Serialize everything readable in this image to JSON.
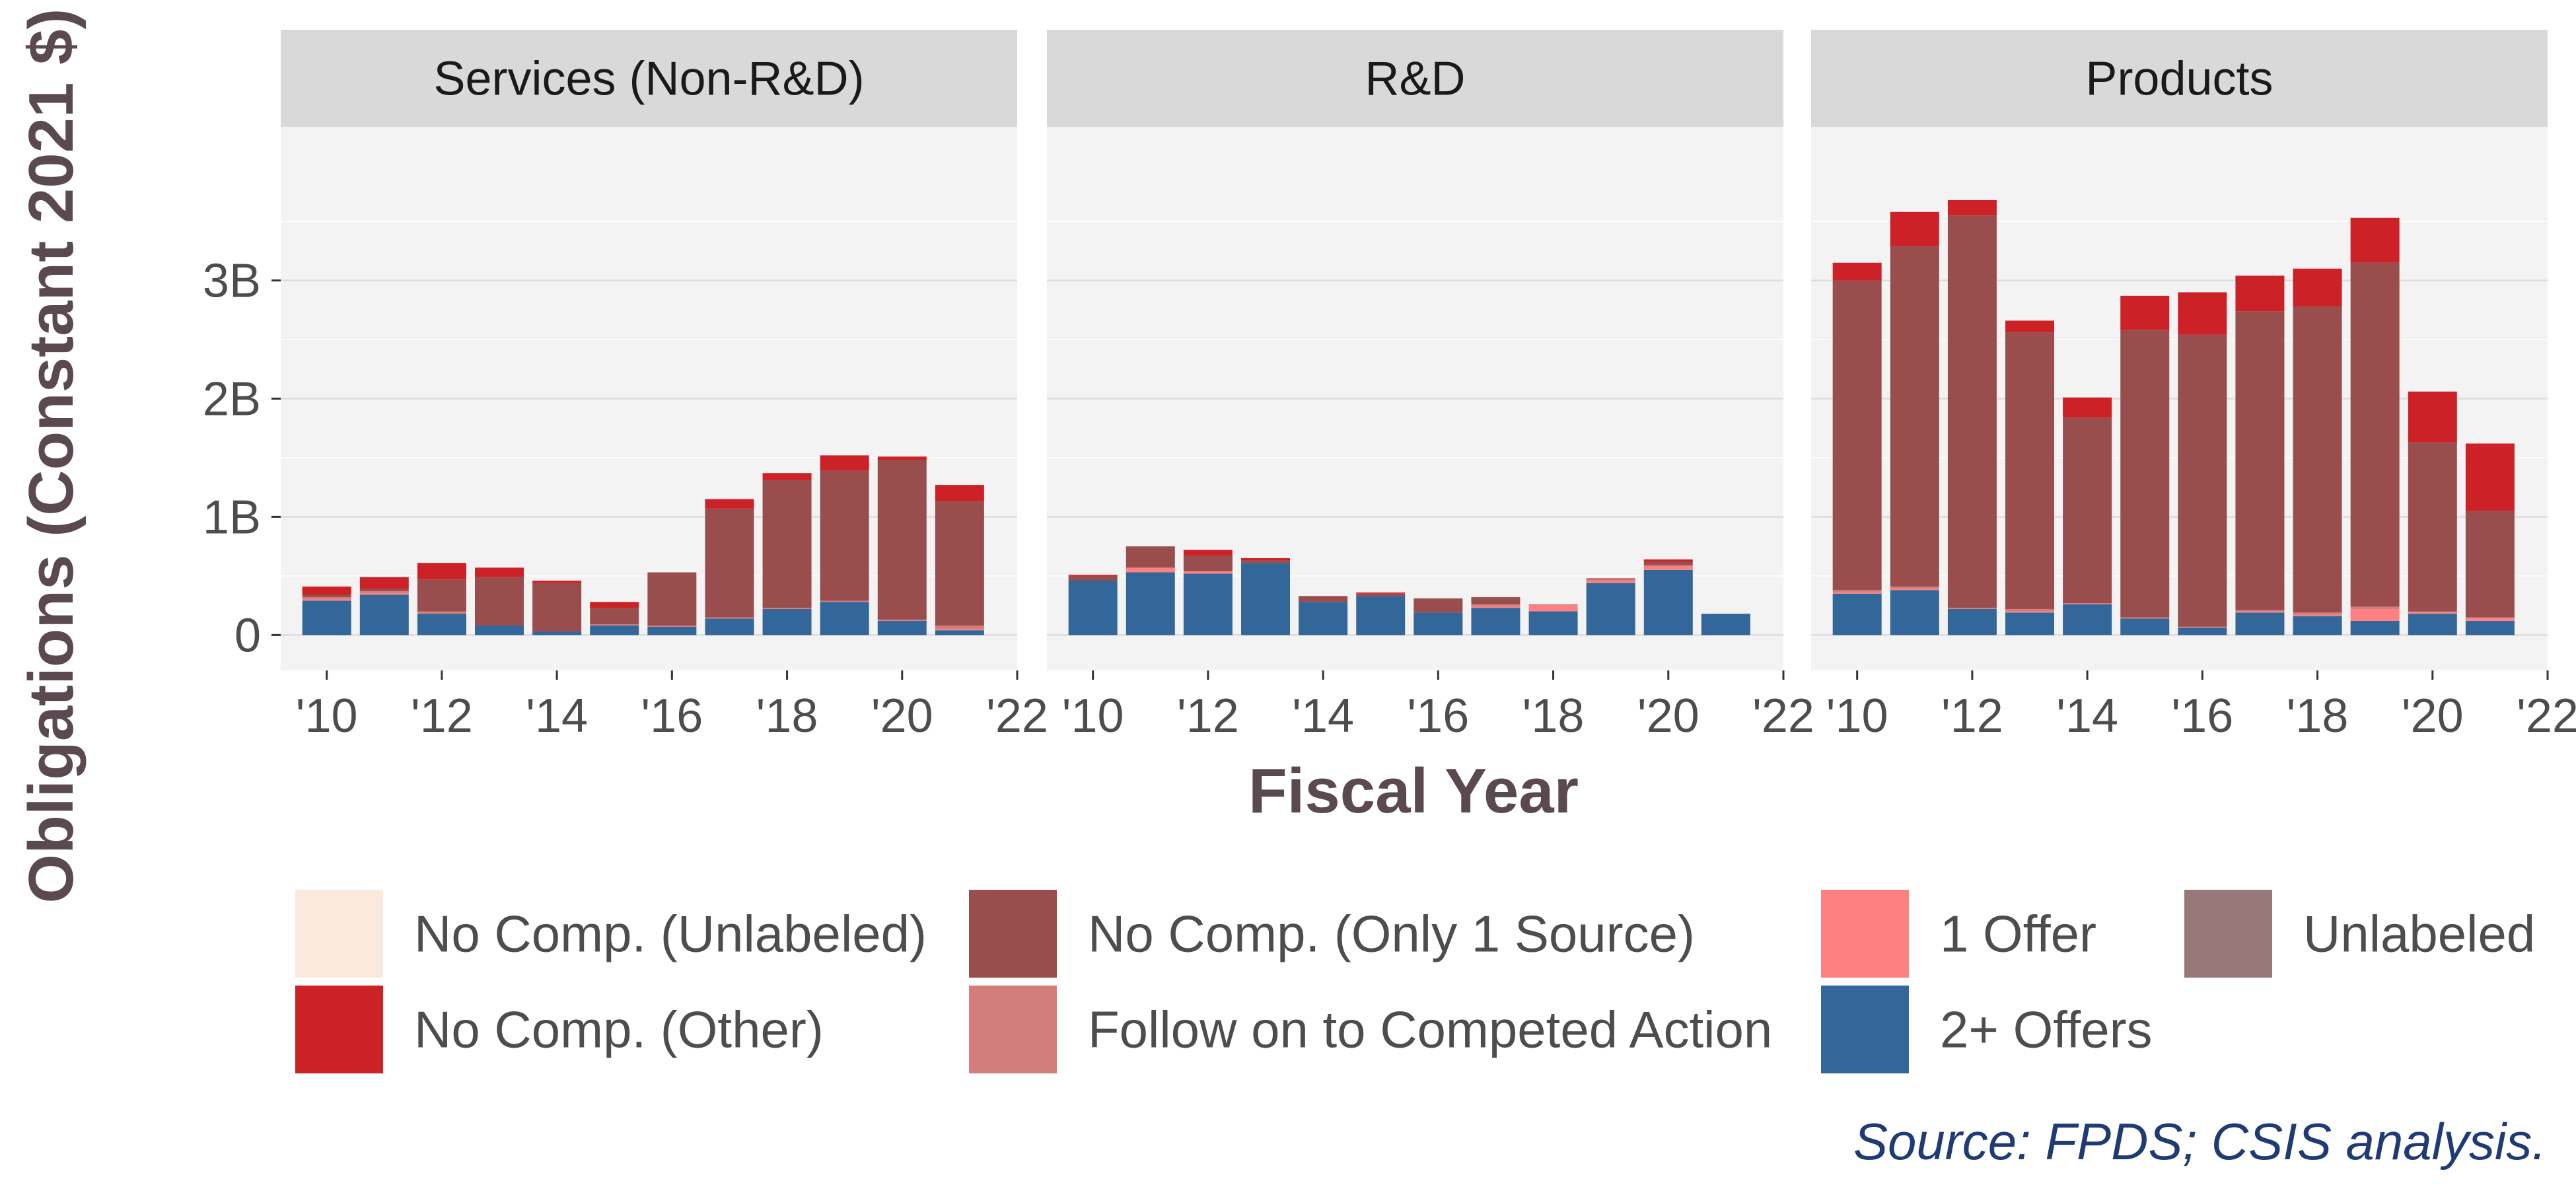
{
  "chart_data": {
    "type": "bar",
    "stacked": true,
    "xlabel": "Fiscal Year",
    "ylabel": "Obligations (Constant 2021 $)",
    "source": "Source: FPDS; CSIS analysis.",
    "ylim": [
      -0.3,
      4.3
    ],
    "yticks": [
      {
        "value": 0,
        "label": "0"
      },
      {
        "value": 1,
        "label": "1B"
      },
      {
        "value": 2,
        "label": "2B"
      },
      {
        "value": 3,
        "label": "3B"
      }
    ],
    "xlim": [
      2009.2,
      2022
    ],
    "xticks": [
      {
        "value": 2010,
        "label": "'10"
      },
      {
        "value": 2012,
        "label": "'12"
      },
      {
        "value": 2014,
        "label": "'14"
      },
      {
        "value": 2016,
        "label": "'16"
      },
      {
        "value": 2018,
        "label": "'18"
      },
      {
        "value": 2020,
        "label": "'20"
      },
      {
        "value": 2022,
        "label": "'22"
      }
    ],
    "grid": true,
    "legend_position": "bottom",
    "series": [
      {
        "name": "No Comp. (Unlabeled)",
        "color": "#fce9dd"
      },
      {
        "name": "No Comp. (Other)",
        "color": "#cc2127"
      },
      {
        "name": "No Comp. (Only 1 Source)",
        "color": "#994d4d"
      },
      {
        "name": "Follow on to Competed Action",
        "color": "#d47d7d"
      },
      {
        "name": "1 Offer",
        "color": "#ff8080"
      },
      {
        "name": "2+ Offers",
        "color": "#336699"
      },
      {
        "name": "Unlabeled",
        "color": "#987878"
      }
    ],
    "stack_order": [
      "2+ Offers",
      "1 Offer",
      "Follow on to Competed Action",
      "No Comp. (Only 1 Source)",
      "No Comp. (Other)",
      "No Comp. (Unlabeled)",
      "Unlabeled"
    ],
    "panels": [
      {
        "title": "Services (Non-R&D)",
        "years": [
          2010,
          2011,
          2012,
          2013,
          2014,
          2015,
          2016,
          2017,
          2018,
          2019,
          2020,
          2021
        ],
        "values": {
          "2+ Offers": [
            0.29,
            0.34,
            0.18,
            0.08,
            0.03,
            0.08,
            0.07,
            0.14,
            0.22,
            0.28,
            0.12,
            0.04
          ],
          "1 Offer": [
            0.01,
            0.01,
            0.0,
            0.0,
            0.0,
            0.0,
            0.0,
            0.0,
            0.0,
            0.0,
            0.0,
            0.01
          ],
          "Follow on to Competed Action": [
            0.02,
            0.02,
            0.02,
            0.0,
            0.0,
            0.01,
            0.01,
            0.01,
            0.01,
            0.01,
            0.01,
            0.03
          ],
          "No Comp. (Only 1 Source)": [
            0.02,
            0.02,
            0.27,
            0.41,
            0.41,
            0.14,
            0.45,
            0.92,
            1.08,
            1.1,
            1.35,
            1.05
          ],
          "No Comp. (Other)": [
            0.07,
            0.1,
            0.14,
            0.08,
            0.02,
            0.05,
            0.0,
            0.08,
            0.06,
            0.13,
            0.03,
            0.14
          ],
          "No Comp. (Unlabeled)": [
            0.01,
            0.0,
            0.0,
            0.0,
            0.0,
            0.0,
            0.0,
            0.0,
            0.0,
            0.0,
            0.0,
            0.0
          ],
          "Unlabeled": [
            0.0,
            0.0,
            0.0,
            0.0,
            0.0,
            0.0,
            0.0,
            0.0,
            0.0,
            0.0,
            0.0,
            0.0
          ]
        }
      },
      {
        "title": "R&D",
        "years": [
          2010,
          2011,
          2012,
          2013,
          2014,
          2015,
          2016,
          2017,
          2018,
          2019,
          2020,
          2021
        ],
        "values": {
          "2+ Offers": [
            0.46,
            0.53,
            0.52,
            0.61,
            0.28,
            0.33,
            0.19,
            0.23,
            0.2,
            0.44,
            0.55,
            0.18
          ],
          "1 Offer": [
            0.0,
            0.04,
            0.02,
            0.0,
            0.0,
            0.0,
            0.0,
            0.01,
            0.05,
            0.02,
            0.03,
            0.0
          ],
          "Follow on to Competed Action": [
            0.0,
            0.0,
            0.0,
            0.0,
            0.0,
            0.0,
            0.0,
            0.02,
            0.01,
            0.01,
            0.01,
            0.0
          ],
          "No Comp. (Only 1 Source)": [
            0.04,
            0.18,
            0.13,
            0.02,
            0.05,
            0.02,
            0.12,
            0.06,
            0.0,
            0.01,
            0.03,
            0.0
          ],
          "No Comp. (Other)": [
            0.01,
            0.0,
            0.05,
            0.02,
            0.0,
            0.01,
            0.0,
            0.0,
            0.0,
            0.0,
            0.02,
            0.0
          ],
          "No Comp. (Unlabeled)": [
            0.0,
            0.0,
            0.0,
            0.0,
            0.0,
            0.0,
            0.0,
            0.0,
            0.0,
            0.0,
            0.0,
            0.0
          ],
          "Unlabeled": [
            0.0,
            0.0,
            0.0,
            0.0,
            0.0,
            0.0,
            0.0,
            0.0,
            0.0,
            0.0,
            0.0,
            0.0
          ]
        }
      },
      {
        "title": "Products",
        "years": [
          2010,
          2011,
          2012,
          2013,
          2014,
          2015,
          2016,
          2017,
          2018,
          2019,
          2020,
          2021
        ],
        "values": {
          "2+ Offers": [
            0.35,
            0.38,
            0.22,
            0.19,
            0.26,
            0.14,
            0.06,
            0.19,
            0.16,
            0.12,
            0.18,
            0.12
          ],
          "1 Offer": [
            0.01,
            0.01,
            0.0,
            0.01,
            0.0,
            0.0,
            0.0,
            0.01,
            0.01,
            0.1,
            0.01,
            0.02
          ],
          "Follow on to Competed Action": [
            0.02,
            0.02,
            0.01,
            0.02,
            0.01,
            0.01,
            0.01,
            0.01,
            0.02,
            0.02,
            0.01,
            0.01
          ],
          "No Comp. (Only 1 Source)": [
            2.62,
            2.88,
            3.32,
            2.34,
            1.57,
            2.43,
            2.47,
            2.53,
            2.59,
            2.91,
            1.43,
            0.9
          ],
          "No Comp. (Other)": [
            0.15,
            0.29,
            0.13,
            0.1,
            0.17,
            0.29,
            0.36,
            0.3,
            0.32,
            0.38,
            0.43,
            0.57
          ],
          "No Comp. (Unlabeled)": [
            0.0,
            0.0,
            0.0,
            0.0,
            0.0,
            0.0,
            0.0,
            0.0,
            0.0,
            0.0,
            0.0,
            0.0
          ],
          "Unlabeled": [
            0.0,
            0.0,
            0.0,
            0.0,
            0.0,
            0.0,
            0.0,
            0.0,
            0.0,
            0.0,
            0.0,
            0.0
          ]
        }
      }
    ],
    "legend_layout": [
      [
        "No Comp. (Unlabeled)",
        "No Comp. (Only 1 Source)",
        "1 Offer",
        "Unlabeled"
      ],
      [
        "No Comp. (Other)",
        "Follow on to Competed Action",
        "2+ Offers"
      ]
    ]
  }
}
